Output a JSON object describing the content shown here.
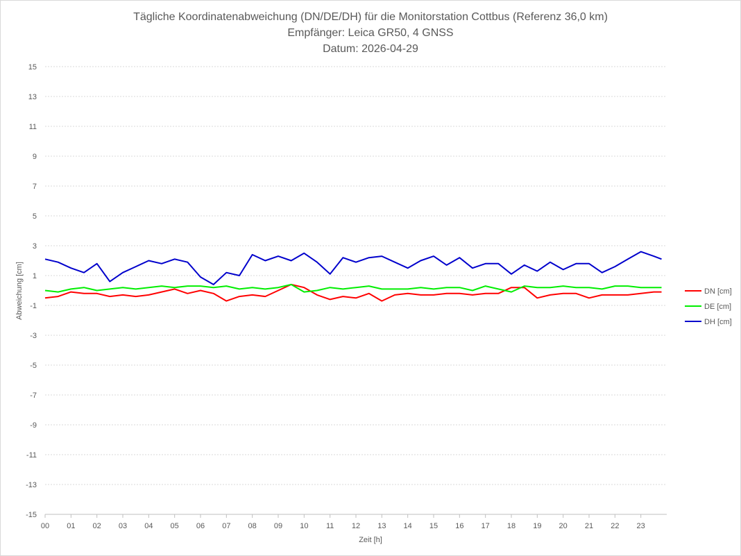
{
  "chart_data": {
    "type": "line",
    "title_lines": [
      "Tägliche Koordinatenabweichung (DN/DE/DH) für die Monitorstation Cottbus (Referenz 36,0 km)",
      "Empfänger: Leica GR50, 4 GNSS",
      "Datum: 2026-04-29"
    ],
    "xlabel": "Zeit [h]",
    "ylabel": "Abweichung [cm]",
    "xlim": [
      0,
      24
    ],
    "ylim": [
      -15,
      15
    ],
    "x_tick_labels": [
      "00",
      "01",
      "02",
      "03",
      "04",
      "05",
      "06",
      "07",
      "08",
      "09",
      "10",
      "11",
      "12",
      "13",
      "14",
      "15",
      "16",
      "17",
      "18",
      "19",
      "20",
      "21",
      "22",
      "23"
    ],
    "y_tick_labels": [
      "15",
      "13",
      "11",
      "9",
      "7",
      "5",
      "3",
      "1",
      "-1",
      "-3",
      "-5",
      "-7",
      "-9",
      "-11",
      "-13",
      "-15"
    ],
    "y_ticks": [
      15,
      13,
      11,
      9,
      7,
      5,
      3,
      1,
      -1,
      -3,
      -5,
      -7,
      -9,
      -11,
      -13,
      -15
    ],
    "grid": "horizontal dotted",
    "legend_position": "right",
    "x": [
      0,
      0.5,
      1,
      1.5,
      2,
      2.5,
      3,
      3.5,
      4,
      4.5,
      5,
      5.5,
      6,
      6.5,
      7,
      7.5,
      8,
      8.5,
      9,
      9.5,
      10,
      10.5,
      11,
      11.5,
      12,
      12.5,
      13,
      13.5,
      14,
      14.5,
      15,
      15.5,
      16,
      16.5,
      17,
      17.5,
      18,
      18.5,
      19,
      19.5,
      20,
      20.5,
      21,
      21.5,
      22,
      22.5,
      23,
      23.5,
      23.8
    ],
    "series": [
      {
        "name": "DN [cm]",
        "color": "#ff0000",
        "values": [
          -0.5,
          -0.4,
          -0.1,
          -0.2,
          -0.2,
          -0.4,
          -0.3,
          -0.4,
          -0.3,
          -0.1,
          0.1,
          -0.2,
          0.0,
          -0.2,
          -0.7,
          -0.4,
          -0.3,
          -0.4,
          0.0,
          0.4,
          0.2,
          -0.3,
          -0.6,
          -0.4,
          -0.5,
          -0.2,
          -0.7,
          -0.3,
          -0.2,
          -0.3,
          -0.3,
          -0.2,
          -0.2,
          -0.3,
          -0.2,
          -0.2,
          0.2,
          0.2,
          -0.5,
          -0.3,
          -0.2,
          -0.2,
          -0.5,
          -0.3,
          -0.3,
          -0.3,
          -0.2,
          -0.1,
          -0.1
        ]
      },
      {
        "name": "DE [cm]",
        "color": "#00ee00",
        "values": [
          0.0,
          -0.1,
          0.1,
          0.2,
          0.0,
          0.1,
          0.2,
          0.1,
          0.2,
          0.3,
          0.2,
          0.3,
          0.3,
          0.2,
          0.3,
          0.1,
          0.2,
          0.1,
          0.2,
          0.4,
          -0.1,
          0.0,
          0.2,
          0.1,
          0.2,
          0.3,
          0.1,
          0.1,
          0.1,
          0.2,
          0.1,
          0.2,
          0.2,
          0.0,
          0.3,
          0.1,
          -0.1,
          0.3,
          0.2,
          0.2,
          0.3,
          0.2,
          0.2,
          0.1,
          0.3,
          0.3,
          0.2,
          0.2,
          0.2
        ]
      },
      {
        "name": "DH [cm]",
        "color": "#0000cc",
        "values": [
          2.1,
          1.9,
          1.5,
          1.2,
          1.8,
          0.6,
          1.2,
          1.6,
          2.0,
          1.8,
          2.1,
          1.9,
          0.9,
          0.4,
          1.2,
          1.0,
          2.4,
          2.0,
          2.3,
          2.0,
          2.5,
          1.9,
          1.1,
          2.2,
          1.9,
          2.2,
          2.3,
          1.9,
          1.5,
          2.0,
          2.3,
          1.7,
          2.2,
          1.5,
          1.8,
          1.8,
          1.1,
          1.7,
          1.3,
          1.9,
          1.4,
          1.8,
          1.8,
          1.2,
          1.6,
          2.1,
          2.6,
          2.3,
          2.1
        ]
      }
    ]
  }
}
